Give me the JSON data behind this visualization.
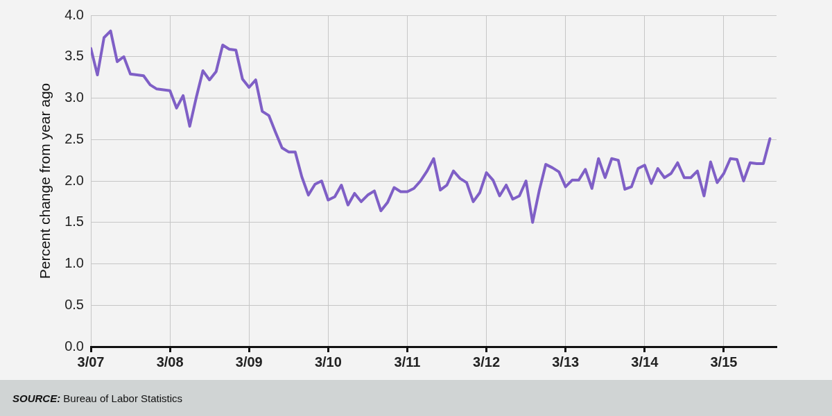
{
  "chart_data": {
    "type": "line",
    "ylabel": "Percent change from year ago",
    "annotations": [
      "SOURCE: Bureau of Labor Statistics"
    ],
    "x": [
      "2007-03",
      "2007-04",
      "2007-05",
      "2007-06",
      "2007-07",
      "2007-08",
      "2007-09",
      "2007-10",
      "2007-11",
      "2007-12",
      "2008-01",
      "2008-02",
      "2008-03",
      "2008-04",
      "2008-05",
      "2008-06",
      "2008-07",
      "2008-08",
      "2008-09",
      "2008-10",
      "2008-11",
      "2008-12",
      "2009-01",
      "2009-02",
      "2009-03",
      "2009-04",
      "2009-05",
      "2009-06",
      "2009-07",
      "2009-08",
      "2009-09",
      "2009-10",
      "2009-11",
      "2009-12",
      "2010-01",
      "2010-02",
      "2010-03",
      "2010-04",
      "2010-05",
      "2010-06",
      "2010-07",
      "2010-08",
      "2010-09",
      "2010-10",
      "2010-11",
      "2010-12",
      "2011-01",
      "2011-02",
      "2011-03",
      "2011-04",
      "2011-05",
      "2011-06",
      "2011-07",
      "2011-08",
      "2011-09",
      "2011-10",
      "2011-11",
      "2011-12",
      "2012-01",
      "2012-02",
      "2012-03",
      "2012-04",
      "2012-05",
      "2012-06",
      "2012-07",
      "2012-08",
      "2012-09",
      "2012-10",
      "2012-11",
      "2012-12",
      "2013-01",
      "2013-02",
      "2013-03",
      "2013-04",
      "2013-05",
      "2013-06",
      "2013-07",
      "2013-08",
      "2013-09",
      "2013-10",
      "2013-11",
      "2013-12",
      "2014-01",
      "2014-02",
      "2014-03",
      "2014-04",
      "2014-05",
      "2014-06",
      "2014-07",
      "2014-08",
      "2014-09",
      "2014-10",
      "2014-11",
      "2014-12",
      "2015-01",
      "2015-02",
      "2015-03",
      "2015-04",
      "2015-05",
      "2015-06",
      "2015-07",
      "2015-08",
      "2015-09",
      "2015-10"
    ],
    "series": [
      {
        "color": "#7f5fc6",
        "values": [
          3.6,
          3.28,
          3.73,
          3.81,
          3.44,
          3.5,
          3.29,
          3.28,
          3.27,
          3.16,
          3.11,
          3.1,
          3.09,
          2.88,
          3.03,
          2.66,
          3.01,
          3.33,
          3.22,
          3.32,
          3.64,
          3.59,
          3.58,
          3.23,
          3.13,
          3.22,
          2.84,
          2.79,
          2.59,
          2.4,
          2.35,
          2.35,
          2.05,
          1.83,
          1.96,
          2.0,
          1.77,
          1.81,
          1.95,
          1.71,
          1.85,
          1.75,
          1.83,
          1.88,
          1.64,
          1.74,
          1.92,
          1.87,
          1.87,
          1.91,
          2.0,
          2.12,
          2.27,
          1.89,
          1.95,
          2.12,
          2.03,
          1.98,
          1.75,
          1.86,
          2.1,
          2.01,
          1.82,
          1.95,
          1.78,
          1.82,
          2.0,
          1.5,
          1.88,
          2.2,
          2.16,
          2.11,
          1.93,
          2.01,
          2.01,
          2.14,
          1.91,
          2.27,
          2.04,
          2.27,
          2.25,
          1.9,
          1.93,
          2.15,
          2.19,
          1.97,
          2.15,
          2.04,
          2.09,
          2.22,
          2.04,
          2.04,
          2.12,
          1.82,
          2.23,
          1.98,
          2.09,
          2.27,
          2.26,
          2.0,
          2.22,
          2.21,
          2.21,
          2.51
        ]
      }
    ],
    "xlim": [
      "2007-03",
      "2015-11"
    ],
    "xticks": [
      {
        "value": "2007-03",
        "label": "3/07"
      },
      {
        "value": "2008-03",
        "label": "3/08"
      },
      {
        "value": "2009-03",
        "label": "3/09"
      },
      {
        "value": "2010-03",
        "label": "3/10"
      },
      {
        "value": "2011-03",
        "label": "3/11"
      },
      {
        "value": "2012-03",
        "label": "3/12"
      },
      {
        "value": "2013-03",
        "label": "3/13"
      },
      {
        "value": "2014-03",
        "label": "3/14"
      },
      {
        "value": "2015-03",
        "label": "3/15"
      }
    ],
    "ylim": [
      0,
      4
    ],
    "yticks": [
      {
        "value": 0,
        "label": "0.0"
      },
      0.5,
      {
        "value": 1,
        "label": "1.0"
      },
      1.5,
      {
        "value": 2,
        "label": "2.0"
      },
      2.5,
      {
        "value": 3,
        "label": "3.0"
      },
      3.5,
      {
        "value": 4,
        "label": "4.0"
      }
    ],
    "grid": true,
    "legend": false,
    "marker": "none",
    "line_style": "solid"
  }
}
